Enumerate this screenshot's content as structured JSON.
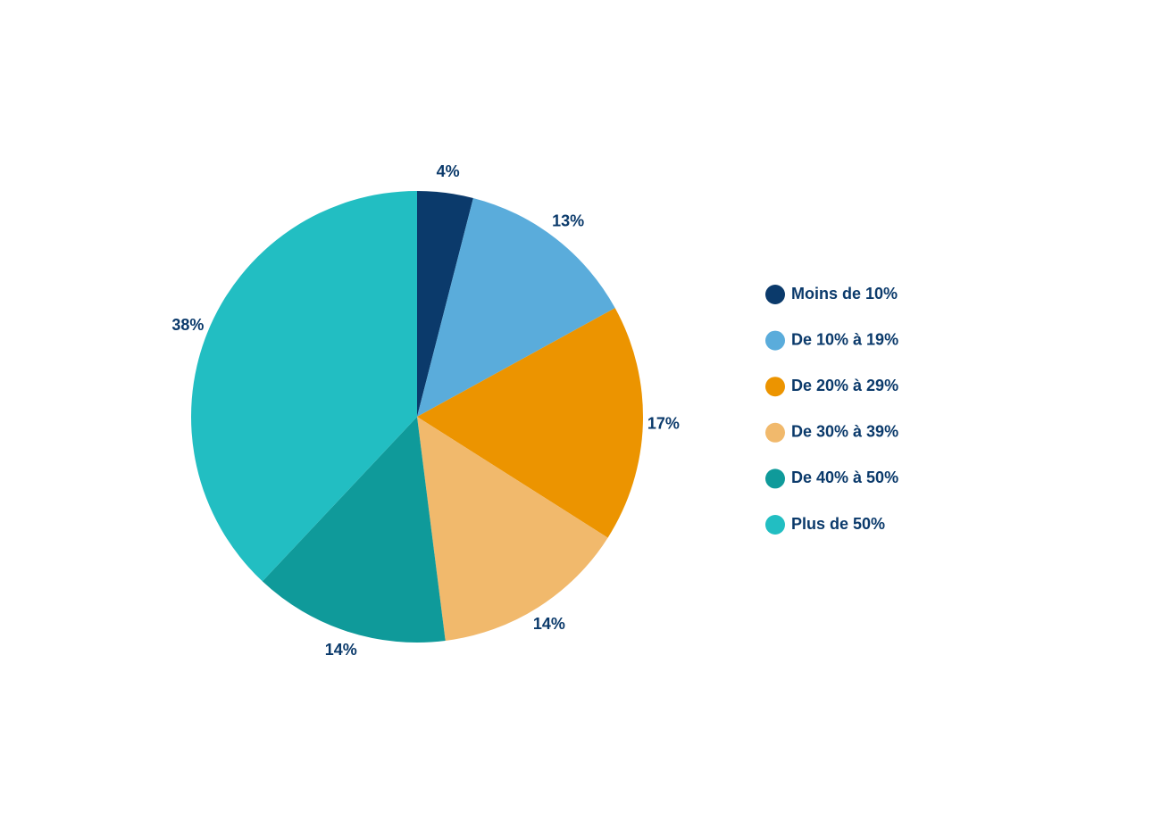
{
  "chart_data": {
    "type": "pie",
    "categories": [
      "Moins de 10%",
      "De 10% à 19%",
      "De 20% à 29%",
      "De 30% à 39%",
      "De 40% à 50%",
      "Plus de 50%"
    ],
    "values": [
      4,
      13,
      17,
      14,
      14,
      38
    ],
    "value_labels": [
      "4%",
      "13%",
      "17%",
      "14%",
      "14%",
      "38%"
    ],
    "colors": [
      "#0b3a6b",
      "#5aacdb",
      "#ec9400",
      "#f1b96c",
      "#0f9a9a",
      "#22bec2"
    ],
    "legend": "right"
  }
}
